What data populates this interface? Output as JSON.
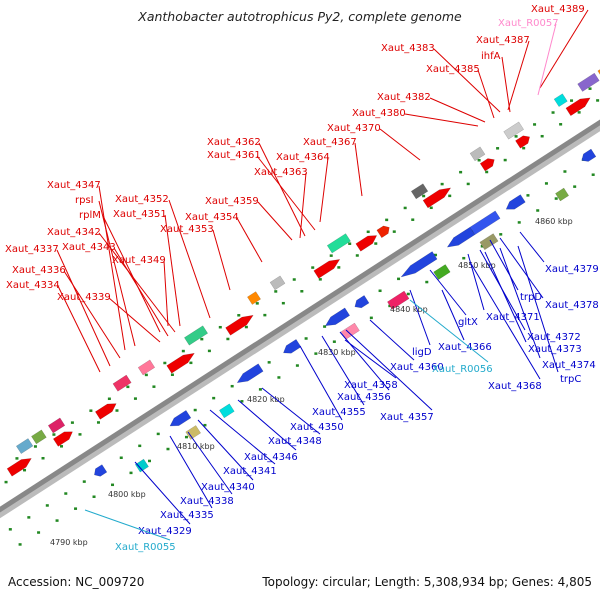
{
  "title": "Xanthobacter autotrophicus Py2, complete genome",
  "footer": {
    "accession": "Accession: NC_009720",
    "topology": "Topology: circular; Length: 5,308,934 bp; Genes: 4,805"
  },
  "colors": {
    "upper_label": "#dd0000",
    "lower_label": "#0000cc",
    "rna_label": "#22aacc",
    "pink_label": "#ff88cc",
    "backbone": "#888888"
  },
  "scale_marks": [
    "4790 kbp",
    "4800 kbp",
    "4810 kbp",
    "4820 kbp",
    "4830 kbp",
    "4840 kbp",
    "4850 kbp",
    "4860 kbp"
  ],
  "upper_labels": [
    {
      "text": "Xaut_4389",
      "color": "red"
    },
    {
      "text": "Xaut_R0057",
      "color": "pink"
    },
    {
      "text": "Xaut_4383",
      "color": "red"
    },
    {
      "text": "Xaut_4387",
      "color": "red"
    },
    {
      "text": "ihfA",
      "color": "red"
    },
    {
      "text": "Xaut_4385",
      "color": "red"
    },
    {
      "text": "Xaut_4382",
      "color": "red"
    },
    {
      "text": "Xaut_4380",
      "color": "red"
    },
    {
      "text": "Xaut_4370",
      "color": "red"
    },
    {
      "text": "Xaut_4367",
      "color": "red"
    },
    {
      "text": "Xaut_4362",
      "color": "red"
    },
    {
      "text": "Xaut_4361",
      "color": "red"
    },
    {
      "text": "Xaut_4364",
      "color": "red"
    },
    {
      "text": "Xaut_4363",
      "color": "red"
    },
    {
      "text": "Xaut_4347",
      "color": "red"
    },
    {
      "text": "rpsI",
      "color": "red"
    },
    {
      "text": "Xaut_4352",
      "color": "red"
    },
    {
      "text": "Xaut_4351",
      "color": "red"
    },
    {
      "text": "rplM",
      "color": "red"
    },
    {
      "text": "Xaut_4354",
      "color": "red"
    },
    {
      "text": "Xaut_4359",
      "color": "red"
    },
    {
      "text": "Xaut_4342",
      "color": "red"
    },
    {
      "text": "Xaut_4353",
      "color": "red"
    },
    {
      "text": "Xaut_4337",
      "color": "red"
    },
    {
      "text": "Xaut_4343",
      "color": "red"
    },
    {
      "text": "Xaut_4349",
      "color": "red"
    },
    {
      "text": "Xaut_4336",
      "color": "red"
    },
    {
      "text": "Xaut_4334",
      "color": "red"
    },
    {
      "text": "Xaut_4339",
      "color": "red"
    }
  ],
  "lower_labels": [
    {
      "text": "Xaut_4379",
      "color": "blue"
    },
    {
      "text": "trpD",
      "color": "blue"
    },
    {
      "text": "Xaut_4378",
      "color": "blue"
    },
    {
      "text": "gltX",
      "color": "blue"
    },
    {
      "text": "Xaut_4371",
      "color": "blue"
    },
    {
      "text": "Xaut_4372",
      "color": "blue"
    },
    {
      "text": "Xaut_4373",
      "color": "blue"
    },
    {
      "text": "ligD",
      "color": "blue"
    },
    {
      "text": "Xaut_4366",
      "color": "blue"
    },
    {
      "text": "Xaut_4374",
      "color": "blue"
    },
    {
      "text": "trpC",
      "color": "blue"
    },
    {
      "text": "Xaut_4360",
      "color": "blue"
    },
    {
      "text": "Xaut_R0056",
      "color": "rna"
    },
    {
      "text": "Xaut_4368",
      "color": "blue"
    },
    {
      "text": "Xaut_4358",
      "color": "blue"
    },
    {
      "text": "Xaut_4356",
      "color": "blue"
    },
    {
      "text": "Xaut_4355",
      "color": "blue"
    },
    {
      "text": "Xaut_4357",
      "color": "blue"
    },
    {
      "text": "Xaut_4350",
      "color": "blue"
    },
    {
      "text": "Xaut_4348",
      "color": "blue"
    },
    {
      "text": "Xaut_4346",
      "color": "blue"
    },
    {
      "text": "Xaut_4341",
      "color": "blue"
    },
    {
      "text": "Xaut_4340",
      "color": "blue"
    },
    {
      "text": "Xaut_4338",
      "color": "blue"
    },
    {
      "text": "Xaut_4335",
      "color": "blue"
    },
    {
      "text": "Xaut_4329",
      "color": "blue"
    },
    {
      "text": "Xaut_R0055",
      "color": "rna"
    }
  ]
}
